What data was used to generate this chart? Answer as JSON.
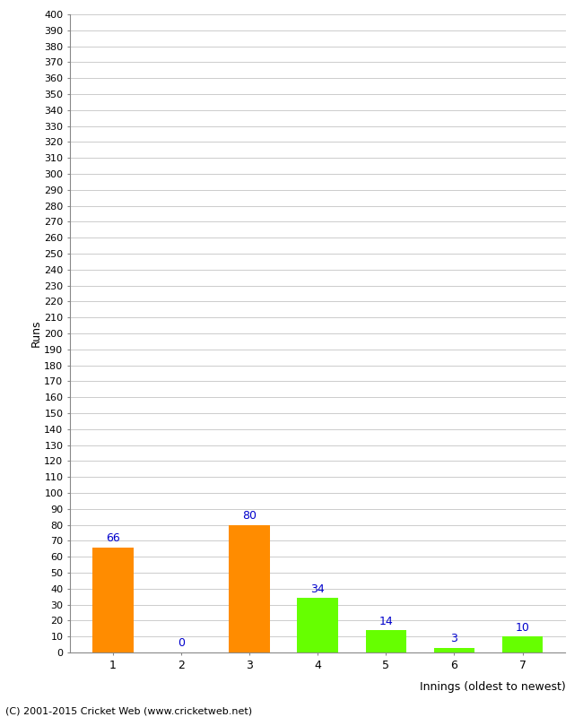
{
  "title": "",
  "xlabel": "Innings (oldest to newest)",
  "ylabel": "Runs",
  "categories": [
    1,
    2,
    3,
    4,
    5,
    6,
    7
  ],
  "values": [
    66,
    0,
    80,
    34,
    14,
    3,
    10
  ],
  "bar_colors": [
    "#FF8C00",
    "#FF8C00",
    "#FF8C00",
    "#66FF00",
    "#66FF00",
    "#66FF00",
    "#66FF00"
  ],
  "ylim": [
    0,
    400
  ],
  "ytick_step": 10,
  "background_color": "#FFFFFF",
  "grid_color": "#CCCCCC",
  "label_color": "#0000CC",
  "footer": "(C) 2001-2015 Cricket Web (www.cricketweb.net)"
}
